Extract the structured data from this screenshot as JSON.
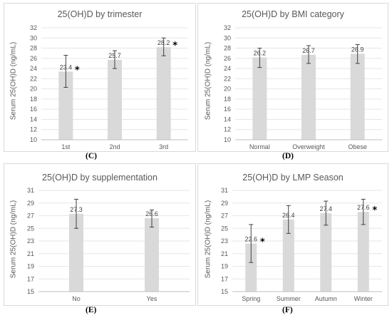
{
  "colors": {
    "bar": "#d9d9d9",
    "grid": "#e6e6e6",
    "error": "#404040"
  },
  "chart_data": [
    {
      "type": "bar",
      "title": "25(OH)D by trimester",
      "ylabel": "Serum 25(OH)D (ng/mL)",
      "panel_label": "(C)",
      "categories": [
        "1st",
        "2nd",
        "3rd"
      ],
      "values": [
        23.4,
        25.7,
        28.2
      ],
      "value_labels": [
        "23.4",
        "25.7",
        "28.2"
      ],
      "error_low": [
        20.3,
        24.0,
        26.5
      ],
      "error_high": [
        26.6,
        27.5,
        30.0
      ],
      "significant": [
        true,
        false,
        true
      ],
      "star_symbol": "*",
      "ylim": [
        10,
        32
      ],
      "yticks": [
        "10",
        "12",
        "14",
        "16",
        "18",
        "20",
        "22",
        "24",
        "26",
        "28",
        "30",
        "32"
      ],
      "grid": true
    },
    {
      "type": "bar",
      "title": "25(OH)D by BMI category",
      "ylabel": "Serum 25(OH)D (ng/mL)",
      "panel_label": "(D)",
      "categories": [
        "Normal",
        "Overweight",
        "Obese"
      ],
      "values": [
        26.2,
        26.7,
        26.9
      ],
      "value_labels": [
        "26.2",
        "26.7",
        "26.9"
      ],
      "error_low": [
        24.2,
        25.0,
        25.0
      ],
      "error_high": [
        28.0,
        28.5,
        28.7
      ],
      "significant": [
        false,
        false,
        false
      ],
      "star_symbol": "*",
      "ylim": [
        10,
        32
      ],
      "yticks": [
        "10",
        "12",
        "14",
        "16",
        "18",
        "20",
        "22",
        "24",
        "26",
        "28",
        "30",
        "32"
      ],
      "grid": true
    },
    {
      "type": "bar",
      "title": "25(OH)D by supplementation",
      "ylabel": "Serum 25(OH)D (ng/mL)",
      "panel_label": "(E)",
      "categories": [
        "No",
        "Yes"
      ],
      "values": [
        27.3,
        26.6
      ],
      "value_labels": [
        "27.3",
        "26.6"
      ],
      "error_low": [
        25.0,
        25.2
      ],
      "error_high": [
        29.6,
        27.9
      ],
      "significant": [
        false,
        false
      ],
      "star_symbol": "*",
      "ylim": [
        15,
        31
      ],
      "yticks": [
        "15",
        "17",
        "19",
        "21",
        "23",
        "25",
        "27",
        "29",
        "31"
      ],
      "grid": true
    },
    {
      "type": "bar",
      "title": "25(OH)D by LMP Season",
      "ylabel": "Serum 25(OH)D (ng/mL)",
      "panel_label": "(F)",
      "categories": [
        "Spring",
        "Summer",
        "Autumn",
        "Winter"
      ],
      "values": [
        22.6,
        26.4,
        27.4,
        27.6
      ],
      "value_labels": [
        "22.6",
        "26.4",
        "27.4",
        "27.6"
      ],
      "error_low": [
        19.6,
        24.2,
        25.5,
        25.6
      ],
      "error_high": [
        25.6,
        28.6,
        29.3,
        29.6
      ],
      "significant": [
        true,
        false,
        false,
        true
      ],
      "star_symbol": "*",
      "ylim": [
        15,
        31
      ],
      "yticks": [
        "15",
        "17",
        "19",
        "21",
        "23",
        "25",
        "27",
        "29",
        "31"
      ],
      "grid": true
    }
  ]
}
